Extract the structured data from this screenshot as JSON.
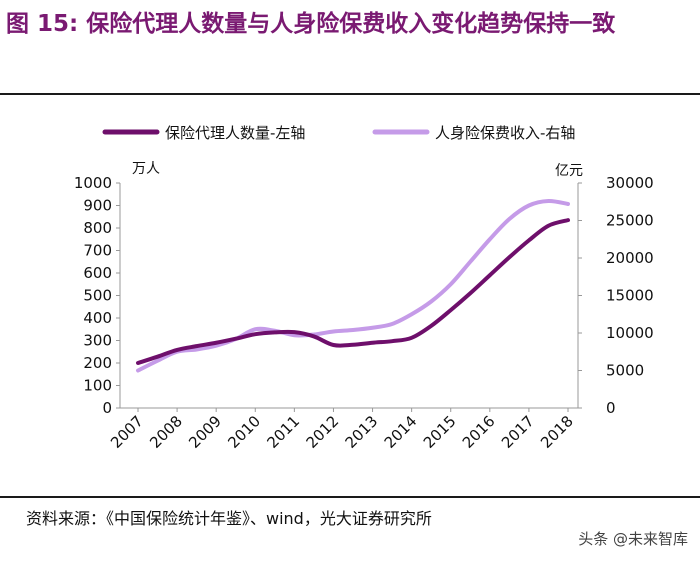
{
  "figure": {
    "title": "图 15: 保险代理人数量与人身险保费收入变化趋势保持一致",
    "source": "资料来源：《中国保险统计年鉴》、wind，光大证券研究所",
    "watermark": "头条 @未来智库"
  },
  "colors": {
    "title": "#7a1a72",
    "series_agents": "#6e0f6b",
    "series_premium": "#c59be8"
  },
  "chart_data": {
    "type": "line",
    "categories": [
      "2007",
      "2008",
      "2009",
      "2010",
      "2011",
      "2012",
      "2013",
      "2014",
      "2015",
      "2016",
      "2017",
      "2018"
    ],
    "series": [
      {
        "name": "保险代理人数量-左轴",
        "axis": "left",
        "x": [
          2007,
          2007.5,
          2008,
          2008.5,
          2009,
          2009.5,
          2010,
          2010.5,
          2011,
          2011.5,
          2012,
          2012.5,
          2013,
          2013.5,
          2014,
          2014.5,
          2015,
          2015.5,
          2016,
          2016.5,
          2017,
          2017.5,
          2018
        ],
        "values": [
          200,
          228,
          258,
          275,
          290,
          308,
          328,
          336,
          337,
          318,
          280,
          281,
          290,
          297,
          312,
          365,
          435,
          510,
          590,
          670,
          745,
          810,
          835
        ]
      },
      {
        "name": "人身险保费收入-右轴",
        "axis": "right",
        "x": [
          2007,
          2007.5,
          2008,
          2008.5,
          2009,
          2009.5,
          2010,
          2010.5,
          2011,
          2011.5,
          2012,
          2012.5,
          2013,
          2013.5,
          2014,
          2014.5,
          2015,
          2015.5,
          2016,
          2016.5,
          2017,
          2017.5,
          2018
        ],
        "values": [
          5000,
          6300,
          7500,
          7800,
          8300,
          9200,
          10500,
          10300,
          9700,
          9800,
          10200,
          10400,
          10700,
          11200,
          12500,
          14200,
          16500,
          19500,
          22500,
          25200,
          27000,
          27600,
          27200
        ]
      }
    ],
    "left_axis": {
      "unit": "万人",
      "ticks": [
        "0",
        "100",
        "200",
        "300",
        "400",
        "500",
        "600",
        "700",
        "800",
        "900",
        "1000"
      ],
      "ylim": [
        0,
        1000
      ]
    },
    "right_axis": {
      "unit": "亿元",
      "ticks": [
        "0",
        "5000",
        "10000",
        "15000",
        "20000",
        "25000",
        "30000"
      ],
      "ylim": [
        0,
        30000
      ]
    },
    "legend_position": "top",
    "grid": false
  }
}
